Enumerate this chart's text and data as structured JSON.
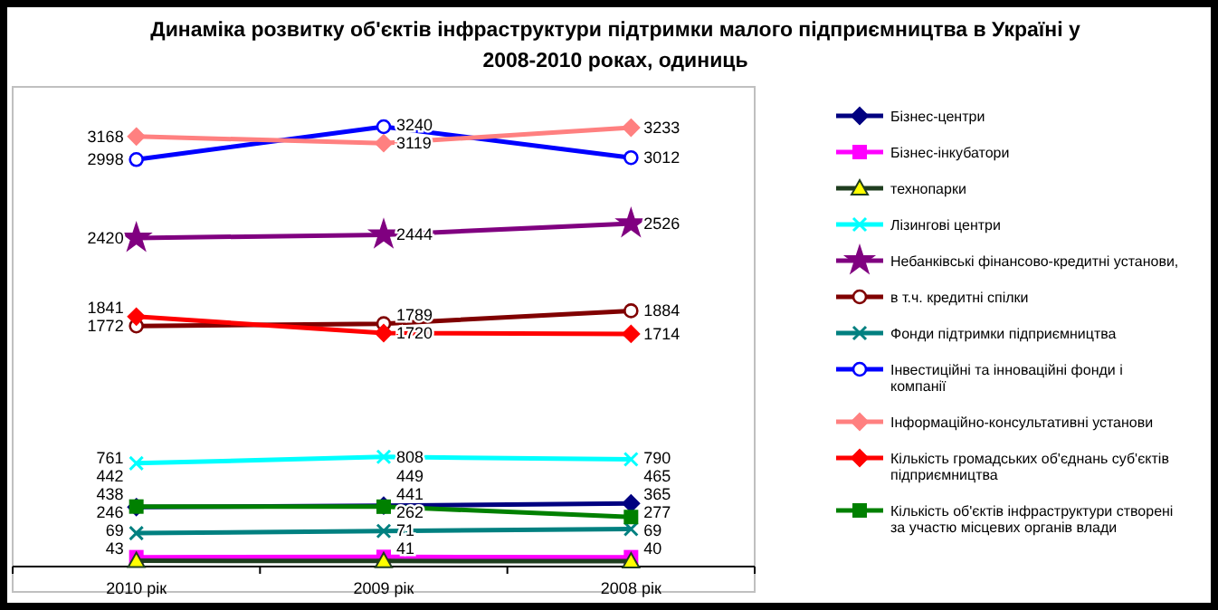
{
  "chart_data": {
    "type": "line",
    "title": "Динаміка розвитку об'єктів інфраструктури підтримки малого підприємництва в Україні у 2008-2010 роках, одиниць",
    "categories": [
      "2010 рік",
      "2009 рік",
      "2008 рік"
    ],
    "tick_labels": "x",
    "data_labels": true,
    "legend": "right",
    "series": [
      {
        "name": "Бізнес-центри",
        "color": "#000080",
        "marker": "diamond",
        "values": [
          438,
          449,
          465
        ]
      },
      {
        "name": "Бізнес-інкубатори",
        "color": "#ff00ff",
        "marker": "square",
        "values": [
          69,
          71,
          69
        ]
      },
      {
        "name": "технопарки",
        "color": "#1f3d1f",
        "marker": "triangle",
        "values": [
          43,
          41,
          40
        ]
      },
      {
        "name": "Лізингові центри",
        "color": "#00ffff",
        "marker": "cross",
        "values": [
          761,
          808,
          790
        ]
      },
      {
        "name": "Небанківські фінансово-кредитні установи,",
        "color": "#800080",
        "marker": "star",
        "values": [
          2420,
          2444,
          2526
        ]
      },
      {
        "name": "в т.ч. кредитні спілки",
        "color": "#800000",
        "marker": "circle",
        "values": [
          1772,
          1789,
          1884
        ]
      },
      {
        "name": "Фонди підтримки підприємництва",
        "color": "#008080",
        "marker": "cross",
        "values": [
          246,
          262,
          277
        ]
      },
      {
        "name": "Інвестиційні та інноваційні фонди і компанії",
        "color": "#0000ff",
        "marker": "circle",
        "values": [
          2998,
          3240,
          3012
        ]
      },
      {
        "name": "Інформаційно-консультативні установи",
        "color": "#ff8080",
        "marker": "diamond",
        "values": [
          3168,
          3119,
          3233
        ]
      },
      {
        "name": "Кількість громадських об'єднань суб'єктів підприємництва",
        "color": "#ff0000",
        "marker": "diamond",
        "values": [
          1841,
          1720,
          1714
        ]
      },
      {
        "name": "Кількість об'єктів інфраструктури створені за участю місцевих органів влади",
        "color": "#008000",
        "marker": "square",
        "values": [
          442,
          441,
          365
        ]
      }
    ]
  }
}
